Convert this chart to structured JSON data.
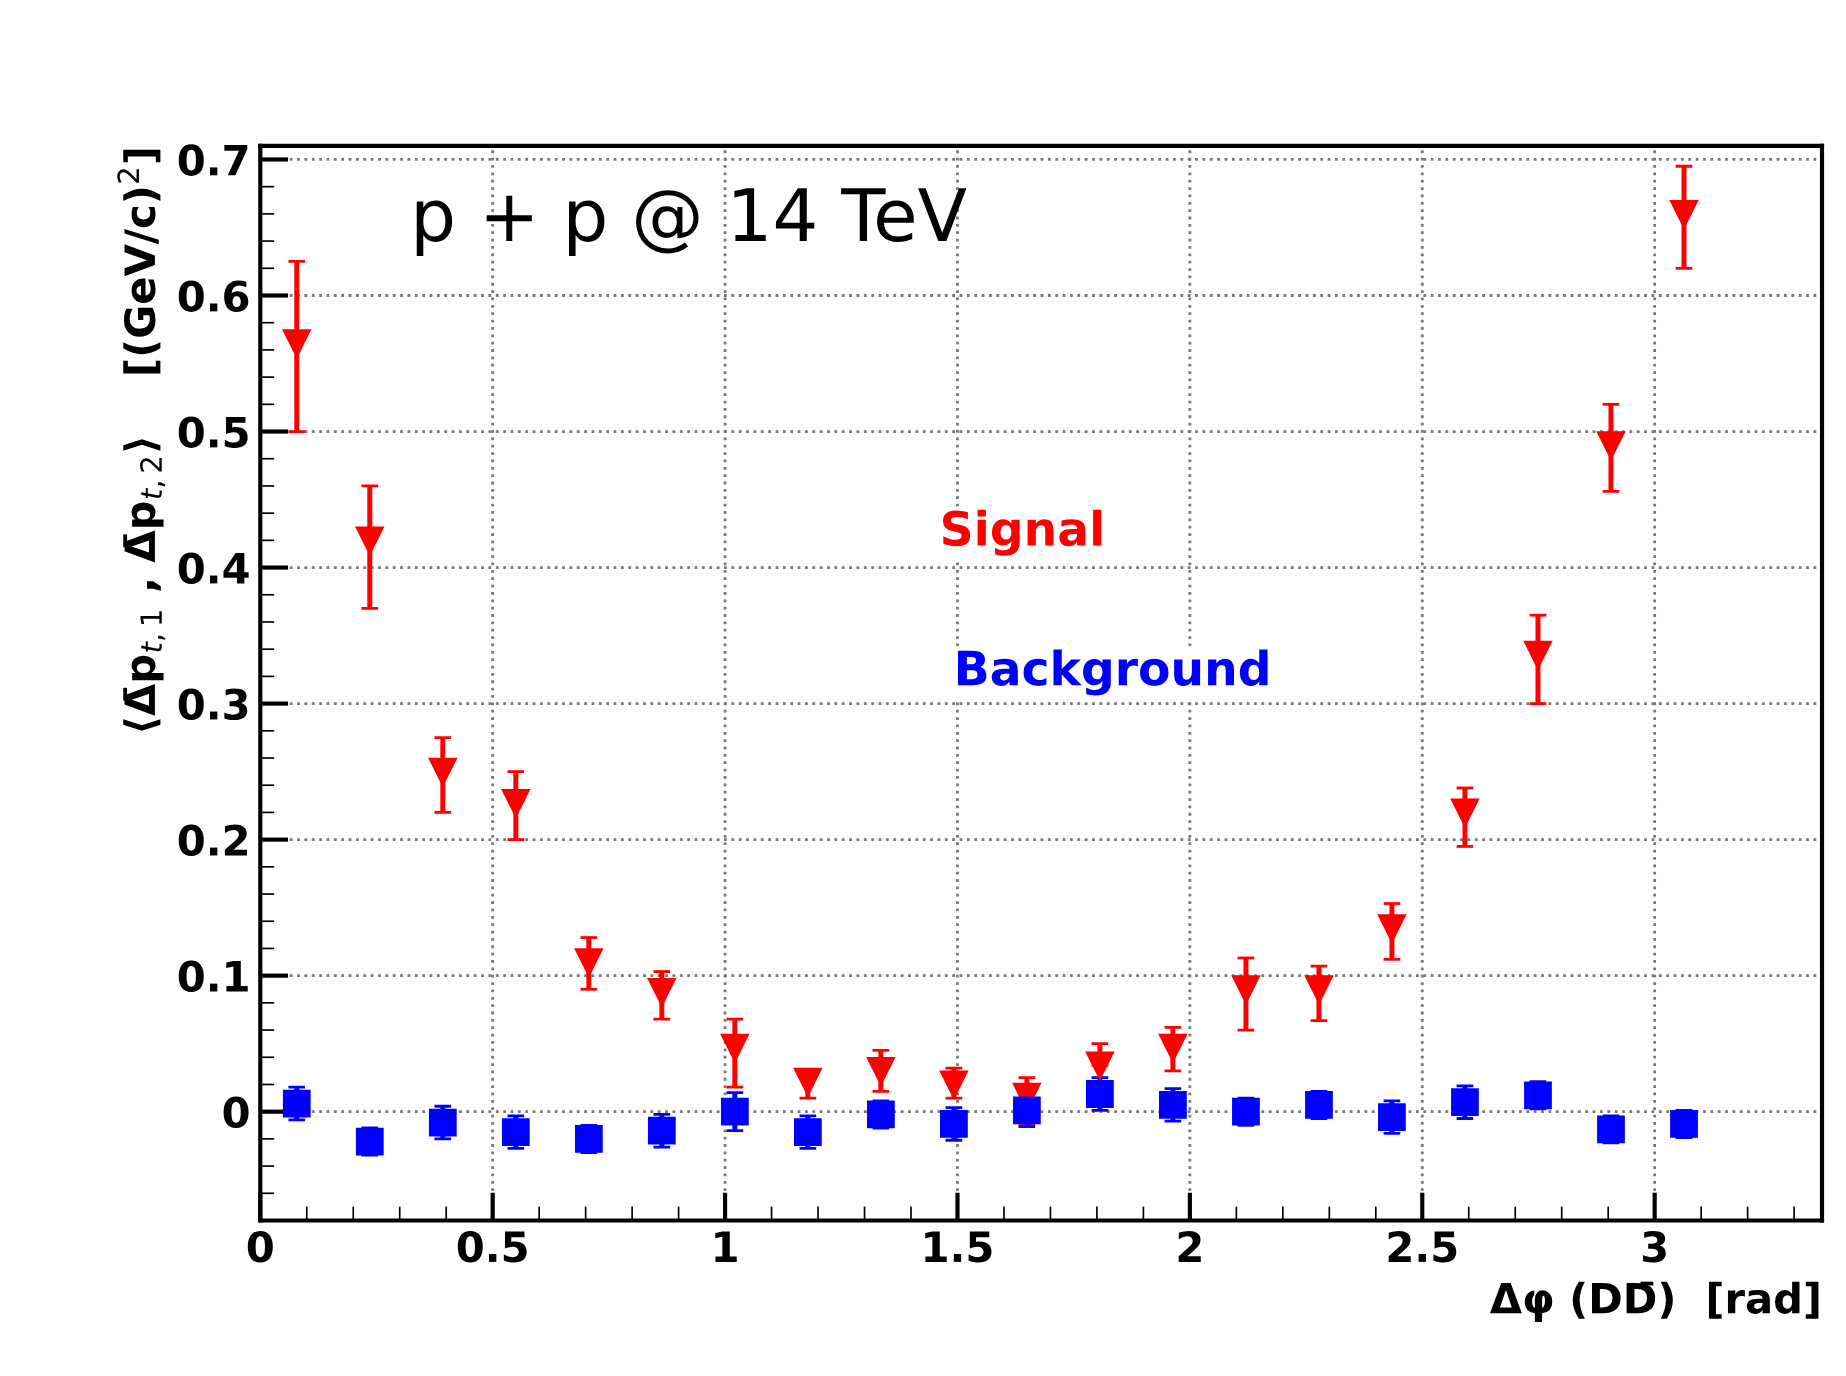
{
  "chart_data": {
    "type": "scatter",
    "xlabel": "Δφ (DD̄)  [rad]",
    "ylabel": "⟨Δ̄p$_{t,1}$ , Δ̄p$_{t,2}$⟩    [(GeV/c)$^{2}$]",
    "annotations": [
      "p + p @ 14 TeV"
    ],
    "x": [
      0.0785,
      0.2356,
      0.3927,
      0.5498,
      0.7069,
      0.8639,
      1.021,
      1.1781,
      1.3352,
      1.4923,
      1.6493,
      1.8064,
      1.9635,
      2.1206,
      2.2777,
      2.4347,
      2.5918,
      2.7489,
      2.906,
      3.0631
    ],
    "series": [
      {
        "name": "Signal",
        "color": "#ff0000",
        "marker": "triangle",
        "values": [
          0.565,
          0.42,
          0.25,
          0.227,
          0.11,
          0.088,
          0.047,
          0.022,
          0.03,
          0.02,
          0.011,
          0.034,
          0.047,
          0.09,
          0.09,
          0.135,
          0.22,
          0.336,
          0.49,
          0.66
        ],
        "errors": [
          [
            0.5,
            0.625
          ],
          [
            0.37,
            0.46
          ],
          [
            0.22,
            0.275
          ],
          [
            0.2,
            0.25
          ],
          [
            0.09,
            0.128
          ],
          [
            0.068,
            0.103
          ],
          [
            0.018,
            0.068
          ],
          [
            0.01,
            0.03
          ],
          [
            0.015,
            0.045
          ],
          [
            0.01,
            0.032
          ],
          [
            -0.01,
            0.025
          ],
          [
            0.034,
            0.05
          ],
          [
            0.03,
            0.062
          ],
          [
            0.06,
            0.113
          ],
          [
            0.067,
            0.107
          ],
          [
            0.112,
            0.153
          ],
          [
            0.195,
            0.238
          ],
          [
            0.3,
            0.365
          ],
          [
            0.456,
            0.52
          ],
          [
            0.62,
            0.695
          ]
        ]
      },
      {
        "name": "Background",
        "color": "#0000ff",
        "marker": "square",
        "values": [
          0.006,
          -0.022,
          -0.008,
          -0.015,
          -0.02,
          -0.014,
          0.0,
          -0.015,
          -0.002,
          -0.009,
          0.001,
          0.013,
          0.005,
          0.0,
          0.005,
          -0.004,
          0.007,
          0.012,
          -0.013,
          -0.009
        ],
        "errors": [
          0.012,
          0.01,
          0.012,
          0.012,
          0.01,
          0.012,
          0.014,
          0.012,
          0.01,
          0.012,
          0.012,
          0.012,
          0.012,
          0.01,
          0.01,
          0.012,
          0.012,
          0.01,
          0.01,
          0.01
        ]
      }
    ],
    "xlim": [
      0,
      3.36
    ],
    "ylim": [
      -0.08,
      0.71
    ],
    "xticks": [
      0,
      0.5,
      1,
      1.5,
      2,
      2.5,
      3
    ],
    "yticks": [
      0,
      0.1,
      0.2,
      0.3,
      0.4,
      0.5,
      0.6,
      0.7
    ],
    "grid": true,
    "legend": false
  }
}
